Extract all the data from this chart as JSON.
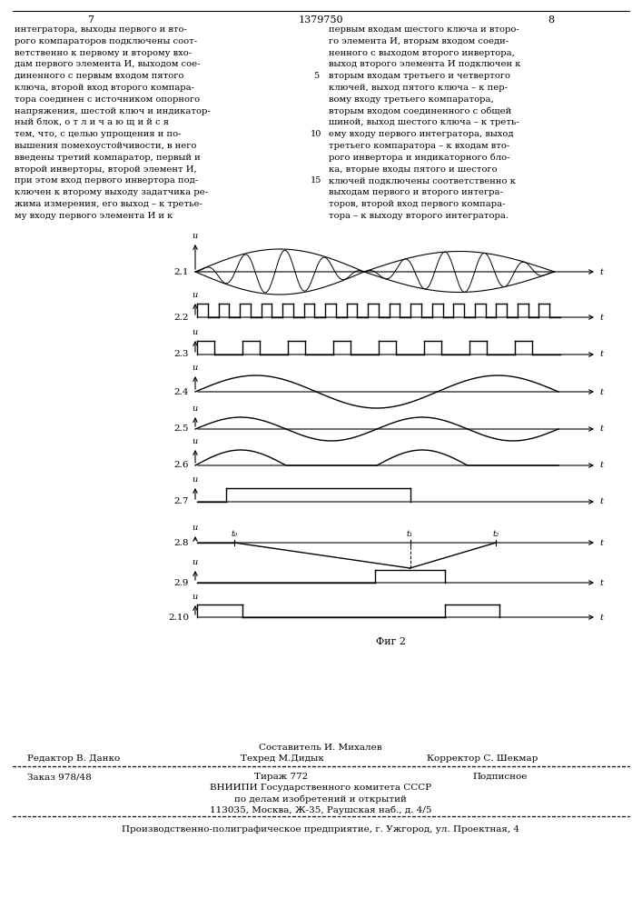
{
  "page_number_left": "7",
  "page_number_center": "1379750",
  "page_number_right": "8",
  "text_left": [
    "интегратора, выходы первого и вто-",
    "рого компараторов подключены соот-",
    "ветственно к первому и второму вхо-",
    "дам первого элемента И, выходом сое-",
    "диненного с первым входом пятого",
    "ключа, второй вход второго компара-",
    "тора соединен с источником опорного",
    "напряжения, шестой ключ и индикатор-",
    "ный блок, о т л и ч а ю щ и й с я",
    "тем, что, с целью упрощения и по-",
    "вышения помехоустойчивости, в него",
    "введены третий компаратор, первый и",
    "второй инверторы, второй элемент И,",
    "при этом вход первого инвертора под-",
    "ключен к второму выходу задатчика ре-",
    "жима измерения, его выход – к третье-",
    "му входу первого элемента И и к"
  ],
  "text_right": [
    "первым входам шестого ключа и второ-",
    "го элемента И, вторым входом соеди-",
    "ненного с выходом второго инвертора,",
    "выход второго элемента И подключен к",
    "вторым входам третьего и четвертого",
    "ключей, выход пятого ключа – к пер-",
    "вому входу третьего компаратора,",
    "вторым входом соединенного с общей",
    "шиной, выход шестого ключа – к треть-",
    "ему входу первого интегратора, выход",
    "третьего компаратора – к входам вто-",
    "рого инвертора и индикаторного бло-",
    "ка, вторые входы пятого и шестого",
    "ключей подключены соответственно к",
    "выходам первого и второго интегра-",
    "торов, второй вход первого компара-",
    "тора – к выходу второго интегратора."
  ],
  "line_numbers": [
    5,
    10,
    15
  ],
  "line_number_rows": [
    4,
    9,
    13
  ],
  "fig_caption": "Фиг 2",
  "bottom_text_line1": "Составитель И. Михалев",
  "bottom_text_line2_left": "Редактор В. Данко",
  "bottom_text_line2_center": "Техред М.Дидык",
  "bottom_text_line2_right": "Корректор С. Шекмар",
  "bottom_text_line3_left": "Заказ 978/48",
  "bottom_text_line3_center": "Тираж 772",
  "bottom_text_line3_right": "Подписное",
  "bottom_text_line4": "ВНИИПИ Государственного комитета СССР",
  "bottom_text_line5": "по делам изобретений и открытий",
  "bottom_text_line6": "113035, Москва, Ж-35, Раушская наб., д. 4/5",
  "bottom_text_line7": "Производственно-полиграфическое предприятие, г. Ужгород, ул. Проектная, 4",
  "waveform_labels": [
    "2.1",
    "2.2",
    "2.3",
    "2.4",
    "2.5",
    "2.6",
    "2.7",
    "2.8",
    "2.9",
    "2.10"
  ],
  "background_color": "#ffffff"
}
